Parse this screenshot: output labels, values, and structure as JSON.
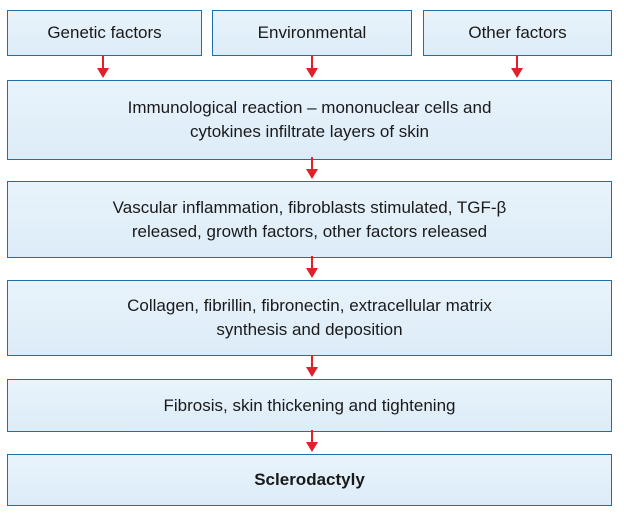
{
  "diagram": {
    "top_boxes": [
      {
        "label": "Genetic factors"
      },
      {
        "label": "Environmental"
      },
      {
        "label": "Other factors"
      }
    ],
    "steps": [
      {
        "line1": "Immunological reaction – mononuclear cells and",
        "line2": "cytokines infiltrate layers of skin"
      },
      {
        "line1": "Vascular inflammation, fibroblasts stimulated, TGF-β",
        "line2": "released, growth factors, other factors released"
      },
      {
        "line1": "Collagen, fibrillin, fibronectin, extracellular matrix",
        "line2": "synthesis and deposition"
      },
      {
        "line1": "Fibrosis, skin thickening and tightening"
      },
      {
        "line1": "Sclerodactyly"
      }
    ],
    "colors": {
      "box_border": "#1f6fa8",
      "box_fill": "#dcecf8",
      "arrow": "#e0202a",
      "text": "#1a1a1a"
    }
  }
}
